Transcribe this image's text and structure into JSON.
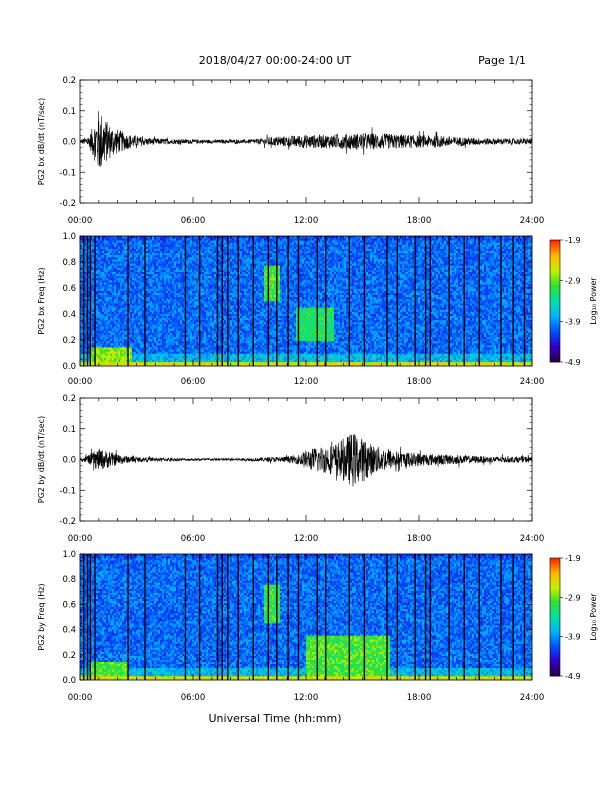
{
  "header": {
    "date_range": "2018/04/27  00:00-24:00 UT",
    "page": "Page 1/1"
  },
  "x_axis": {
    "title": "Universal Time (hh:mm)",
    "tick_labels": [
      "00:00",
      "06:00",
      "12:00",
      "18:00",
      "24:00"
    ]
  },
  "colors": {
    "trace": "#000000",
    "colormap": [
      "#2b0040",
      "#3000c8",
      "#0050ff",
      "#00b4ff",
      "#00e0a0",
      "#30e030",
      "#c8f000",
      "#ffb400",
      "#ff2000"
    ]
  },
  "chart_data": [
    {
      "type": "line",
      "ylabel": "PG2 bx dB/dt (nT/sec)",
      "ylim": [
        -0.2,
        0.2
      ],
      "ytick_labels": [
        "0.2",
        "0.1",
        "0.0",
        "-0.1",
        "-0.2"
      ],
      "x_hours_range": [
        0,
        24
      ],
      "envelope": {
        "x_hours": [
          0,
          0.5,
          0.8,
          1.0,
          1.2,
          1.5,
          2.0,
          2.5,
          3.5,
          5,
          7,
          8,
          9,
          9.5,
          10,
          11,
          12,
          13,
          14,
          15,
          16,
          17,
          18,
          19,
          20,
          21,
          22,
          23,
          24
        ],
        "amplitude": [
          0.005,
          0.02,
          0.07,
          0.11,
          0.09,
          0.06,
          0.04,
          0.025,
          0.012,
          0.008,
          0.006,
          0.006,
          0.007,
          0.009,
          0.014,
          0.018,
          0.022,
          0.022,
          0.025,
          0.028,
          0.026,
          0.024,
          0.02,
          0.02,
          0.015,
          0.012,
          0.01,
          0.01,
          0.01
        ]
      }
    },
    {
      "type": "heatmap",
      "ylabel": "PG2 bx Freq (Hz)",
      "ylim": [
        0,
        1.0
      ],
      "ytick_labels": [
        "1.0",
        "0.8",
        "0.6",
        "0.4",
        "0.2",
        "0.0"
      ],
      "colorbar": {
        "label": "Log₁₀ Power",
        "tick_labels": [
          "-1.9",
          "-2.9",
          "-3.9",
          "-4.9"
        ],
        "range": [
          -4.9,
          -1.9
        ]
      },
      "data_gaps_hours": [
        0.2,
        0.4,
        0.55,
        0.8,
        2.55,
        3.45,
        5.6,
        6.35,
        7.3,
        7.55,
        7.85,
        8.4,
        9.2,
        10.0,
        10.45,
        11.05,
        11.6,
        12.6,
        13.05,
        14.3,
        15.1,
        16.3,
        16.85,
        17.8,
        18.35,
        18.6,
        19.6,
        20.4,
        21.2,
        22.35,
        23.0,
        23.6
      ],
      "enhancements": [
        {
          "t_hours": [
            9.8,
            10.6
          ],
          "f_hz": [
            0.5,
            0.78
          ],
          "level": -3.0
        },
        {
          "t_hours": [
            11.5,
            13.5
          ],
          "f_hz": [
            0.2,
            0.45
          ],
          "level": -3.2
        },
        {
          "t_hours": [
            0.5,
            2.8
          ],
          "f_hz": [
            0.0,
            0.15
          ],
          "level": -2.8
        }
      ]
    },
    {
      "type": "line",
      "ylabel": "PG2 by dB/dt (nT/sec)",
      "ylim": [
        -0.2,
        0.2
      ],
      "ytick_labels": [
        "0.2",
        "0.1",
        "0.0",
        "-0.1",
        "-0.2"
      ],
      "x_hours_range": [
        0,
        24
      ],
      "envelope": {
        "x_hours": [
          0,
          0.5,
          0.8,
          1.0,
          1.5,
          2.0,
          2.5,
          3.0,
          4,
          6,
          8,
          9,
          10,
          11,
          11.5,
          12,
          12.5,
          13,
          13.5,
          14,
          14.5,
          15,
          15.5,
          16,
          17,
          18,
          19,
          20,
          21,
          22,
          23,
          24
        ],
        "amplitude": [
          0.005,
          0.015,
          0.03,
          0.035,
          0.028,
          0.018,
          0.012,
          0.008,
          0.006,
          0.004,
          0.004,
          0.005,
          0.007,
          0.01,
          0.014,
          0.03,
          0.04,
          0.045,
          0.05,
          0.07,
          0.09,
          0.07,
          0.05,
          0.04,
          0.025,
          0.022,
          0.018,
          0.015,
          0.012,
          0.01,
          0.01,
          0.01
        ]
      }
    },
    {
      "type": "heatmap",
      "ylabel": "PG2 by Freq (Hz)",
      "ylim": [
        0,
        1.0
      ],
      "ytick_labels": [
        "1.0",
        "0.8",
        "0.6",
        "0.4",
        "0.2",
        "0.0"
      ],
      "colorbar": {
        "label": "Log₁₀ Power",
        "tick_labels": [
          "-1.9",
          "-2.9",
          "-3.9",
          "-4.9"
        ],
        "range": [
          -4.9,
          -1.9
        ]
      },
      "data_gaps_hours": [
        0.2,
        0.4,
        0.55,
        0.8,
        2.55,
        3.45,
        5.6,
        6.35,
        7.3,
        7.55,
        7.85,
        8.4,
        9.2,
        10.0,
        10.45,
        11.05,
        11.6,
        12.6,
        13.05,
        14.3,
        15.1,
        16.3,
        16.85,
        17.8,
        18.35,
        18.6,
        19.6,
        20.4,
        21.2,
        22.35,
        23.0,
        23.6
      ],
      "enhancements": [
        {
          "t_hours": [
            9.8,
            10.6
          ],
          "f_hz": [
            0.45,
            0.75
          ],
          "level": -3.1
        },
        {
          "t_hours": [
            12.0,
            16.5
          ],
          "f_hz": [
            0.0,
            0.35
          ],
          "level": -3.0
        },
        {
          "t_hours": [
            0.5,
            2.5
          ],
          "f_hz": [
            0.0,
            0.15
          ],
          "level": -3.0
        }
      ]
    }
  ]
}
